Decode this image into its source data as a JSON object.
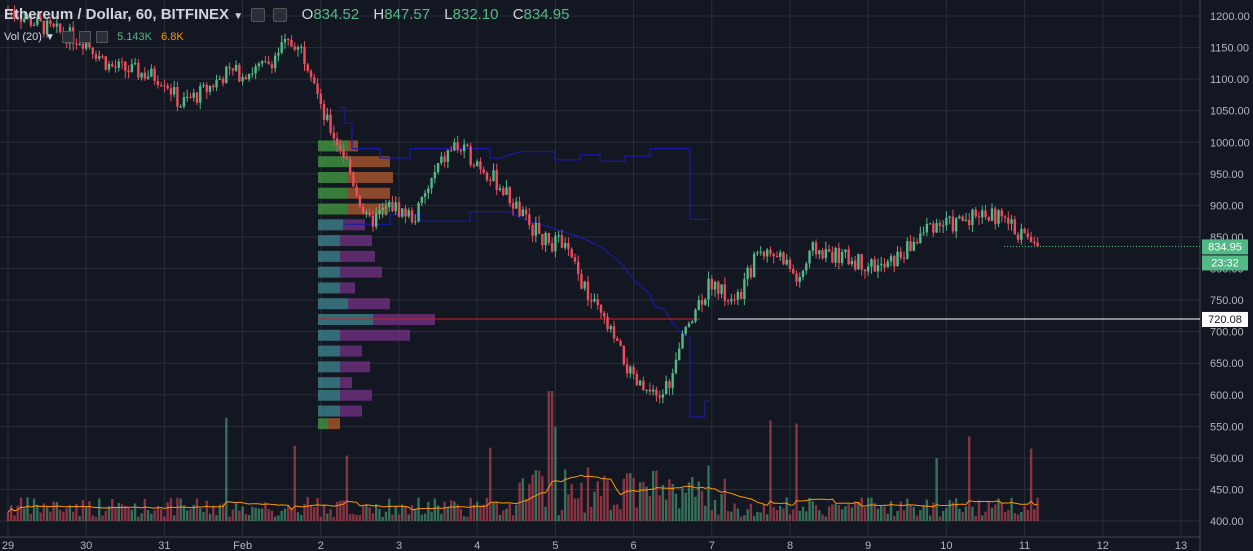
{
  "header": {
    "symbol": "Ethereum / Dollar, 60, BITFINEX",
    "open_label": "O",
    "open": "834.52",
    "high_label": "H",
    "high": "847.57",
    "low_label": "L",
    "low": "832.10",
    "close_label": "C",
    "close": "834.95"
  },
  "volume_legend": {
    "label": "Vol (20)",
    "value1": "5.143K",
    "value2": "6.8K"
  },
  "price_badges": {
    "last_price": "834.95",
    "countdown": "23:32",
    "line_price": "720.08"
  },
  "colors": {
    "background": "#131722",
    "grid": "#2a2e39",
    "up": "#53b987",
    "down": "#eb4d5c",
    "volume_profile_up": "#3e8e3e",
    "volume_profile_down": "#a0522d",
    "volume_profile_teal": "#3a7a85",
    "volume_profile_purple": "#6a2f7a",
    "blue_line": "#1a1aa6",
    "ma_line": "#ff9800",
    "poc_line": "#cc2222"
  },
  "chart_data": {
    "type": "candlestick",
    "title": "Ethereum / Dollar, 60, BITFINEX",
    "x_ticks": [
      "29",
      "30",
      "31",
      "Feb",
      "2",
      "3",
      "4",
      "5",
      "6",
      "7",
      "8",
      "9",
      "10",
      "11",
      "12",
      "13"
    ],
    "y_ticks": [
      400,
      450,
      500,
      550,
      600,
      650,
      700,
      750,
      800,
      850,
      900,
      950,
      1000,
      1050,
      1100,
      1150,
      1200
    ],
    "ylim": [
      400,
      1210
    ],
    "price_path_keypoints": [
      {
        "day": 29.0,
        "price": 1210
      },
      {
        "day": 29.5,
        "price": 1180
      },
      {
        "day": 30.0,
        "price": 1160
      },
      {
        "day": 30.3,
        "price": 1120
      },
      {
        "day": 30.7,
        "price": 1110
      },
      {
        "day": 31.0,
        "price": 1100
      },
      {
        "day": 31.2,
        "price": 1060
      },
      {
        "day": 31.5,
        "price": 1080
      },
      {
        "day": 31.8,
        "price": 1110
      },
      {
        "day": 32.0,
        "price": 1110
      },
      {
        "day": 32.3,
        "price": 1120
      },
      {
        "day": 32.5,
        "price": 1150
      },
      {
        "day": 32.7,
        "price": 1160
      },
      {
        "day": 32.9,
        "price": 1110
      },
      {
        "day": 33.0,
        "price": 1050
      },
      {
        "day": 33.3,
        "price": 980
      },
      {
        "day": 33.6,
        "price": 870
      },
      {
        "day": 33.9,
        "price": 900
      },
      {
        "day": 34.2,
        "price": 880
      },
      {
        "day": 34.5,
        "price": 960
      },
      {
        "day": 34.7,
        "price": 995
      },
      {
        "day": 35.0,
        "price": 970
      },
      {
        "day": 35.3,
        "price": 930
      },
      {
        "day": 35.6,
        "price": 880
      },
      {
        "day": 35.9,
        "price": 840
      },
      {
        "day": 36.1,
        "price": 840
      },
      {
        "day": 36.4,
        "price": 760
      },
      {
        "day": 36.7,
        "price": 700
      },
      {
        "day": 37.0,
        "price": 620
      },
      {
        "day": 37.3,
        "price": 590
      },
      {
        "day": 37.5,
        "price": 630
      },
      {
        "day": 37.7,
        "price": 720
      },
      {
        "day": 38.0,
        "price": 780
      },
      {
        "day": 38.3,
        "price": 740
      },
      {
        "day": 38.6,
        "price": 830
      },
      {
        "day": 38.9,
        "price": 820
      },
      {
        "day": 39.1,
        "price": 780
      },
      {
        "day": 39.3,
        "price": 830
      },
      {
        "day": 39.6,
        "price": 820
      },
      {
        "day": 39.9,
        "price": 810
      },
      {
        "day": 40.2,
        "price": 800
      },
      {
        "day": 40.5,
        "price": 830
      },
      {
        "day": 40.8,
        "price": 870
      },
      {
        "day": 41.1,
        "price": 870
      },
      {
        "day": 41.4,
        "price": 890
      },
      {
        "day": 41.7,
        "price": 880
      },
      {
        "day": 42.0,
        "price": 850
      },
      {
        "day": 42.2,
        "price": 835
      }
    ],
    "horizontal_line": 720.08,
    "last_price": 834.95
  }
}
